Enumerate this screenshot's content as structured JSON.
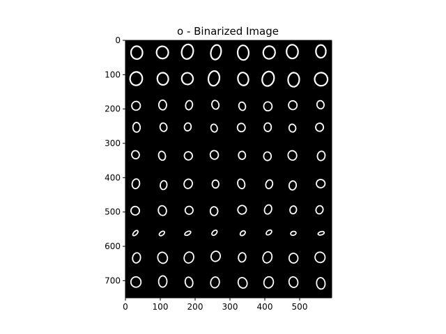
{
  "figure": {
    "title": "o - Binarized Image",
    "background": "#ffffff",
    "image_background": "#000000",
    "stroke_color": "#ffffff"
  },
  "image": {
    "description_type": "binarized handwriting grid",
    "grid_rows": 10,
    "grid_cols": 8,
    "glyph": "o"
  },
  "axes": {
    "x_ticks": [
      "0",
      "100",
      "200",
      "300",
      "400",
      "500"
    ],
    "y_ticks": [
      "0",
      "100",
      "200",
      "300",
      "400",
      "500",
      "600",
      "700"
    ],
    "x_range": [
      0,
      592
    ],
    "y_range": [
      750,
      0
    ]
  }
}
